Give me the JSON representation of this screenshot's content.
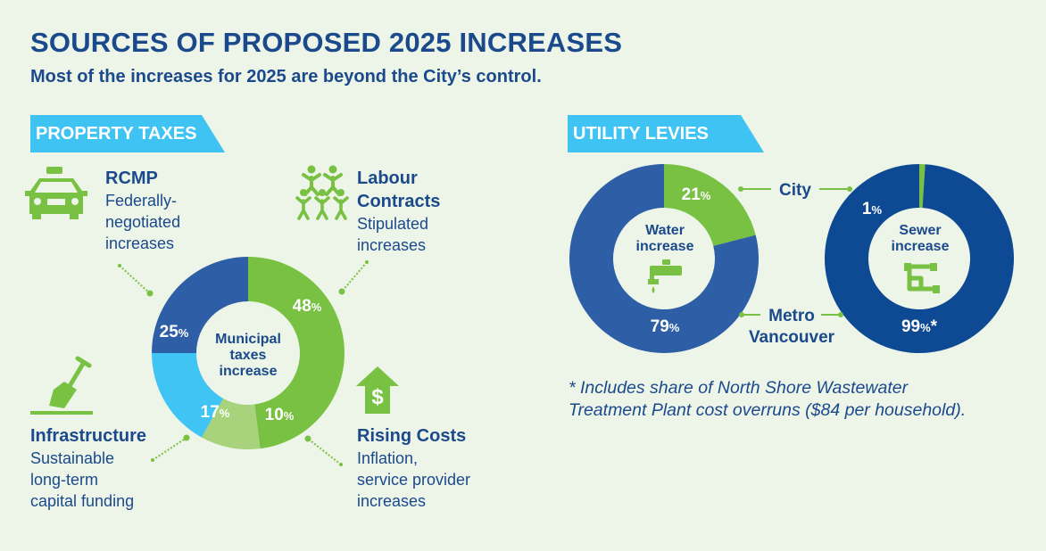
{
  "header": {
    "title": "SOURCES OF PROPOSED 2025 INCREASES",
    "subtitle": "Most of the increases for 2025 are beyond the City’s control."
  },
  "property_taxes": {
    "section_label": "PROPERTY TAXES",
    "center_label": [
      "Municipal",
      "taxes",
      "increase"
    ],
    "rcmp": {
      "title": "RCMP",
      "desc": [
        "Federally-",
        "negotiated",
        "increases"
      ],
      "icon": "police-car-icon"
    },
    "labour": {
      "title": [
        "Labour",
        "Contracts"
      ],
      "desc": [
        "Stipulated",
        "increases"
      ],
      "icon": "people-group-icon"
    },
    "infrastructure": {
      "title": "Infrastructure",
      "desc": [
        "Sustainable",
        "long-term",
        "capital funding"
      ],
      "icon": "shovel-icon"
    },
    "rising": {
      "title": "Rising Costs",
      "desc": [
        "Inflation,",
        "service provider",
        "increases"
      ],
      "icon": "dollar-arrow-up-icon"
    }
  },
  "utility_levies": {
    "section_label": "UTILITY LEVIES",
    "water_label": [
      "Water",
      "increase"
    ],
    "sewer_label": [
      "Sewer",
      "increase"
    ],
    "city_label": "City",
    "metro_label": [
      "Metro",
      "Vancouver"
    ],
    "icons": [
      "faucet-icon",
      "pipe-icon"
    ]
  },
  "footnote": [
    "* Includes share of North Shore Wastewater",
    "Treatment Plant cost overruns ($84 per household)."
  ],
  "colors": {
    "dark_blue": "#1b4a8c",
    "medium_blue": "#2d62a6",
    "navy": "#0d4a93",
    "green": "#79c143",
    "light_green": "#a8d37c",
    "cyan": "#3fc3f2",
    "background": "#edf4e8"
  },
  "chart_data": [
    {
      "type": "pie",
      "title": "Municipal taxes increase",
      "categories": [
        "Labour Contracts",
        "Rising Costs",
        "Infrastructure",
        "RCMP"
      ],
      "values": [
        48,
        10,
        17,
        25
      ],
      "value_labels": [
        "48",
        "10",
        "17",
        "25"
      ],
      "unit": "%",
      "colors": [
        "#79c143",
        "#a8d37c",
        "#40c4f3",
        "#2d5ea6"
      ]
    },
    {
      "type": "pie",
      "title": "Water increase",
      "categories": [
        "City",
        "Metro Vancouver"
      ],
      "values": [
        21,
        79
      ],
      "value_labels": [
        "21",
        "79"
      ],
      "unit": "%",
      "colors": [
        "#79c143",
        "#2d5ea6"
      ]
    },
    {
      "type": "pie",
      "title": "Sewer increase",
      "categories": [
        "City",
        "Metro Vancouver"
      ],
      "values": [
        1,
        99
      ],
      "value_labels": [
        "1",
        "99"
      ],
      "unit": "%",
      "value_suffix": [
        "",
        "*"
      ],
      "colors": [
        "#79c143",
        "#0d4a93"
      ]
    }
  ]
}
